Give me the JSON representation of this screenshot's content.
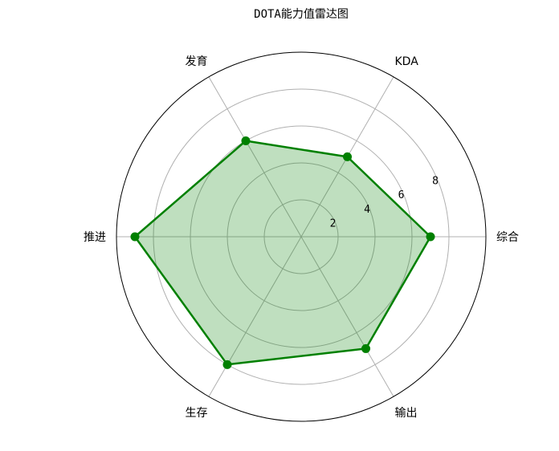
{
  "chart_data": {
    "type": "radar",
    "title": "DOTA能力值雷达图",
    "categories": [
      "综合",
      "KDA",
      "发育",
      "推进",
      "生存",
      "输出"
    ],
    "series": [
      {
        "values": [
          7,
          5,
          6,
          9,
          8,
          7
        ]
      }
    ],
    "rlim": [
      0,
      10
    ],
    "rticks": [
      2,
      4,
      6,
      8
    ],
    "grid": true,
    "colors": {
      "line": "#008000",
      "fill": "#008000",
      "grid": "#b0b0b0",
      "frame": "#000000"
    }
  }
}
